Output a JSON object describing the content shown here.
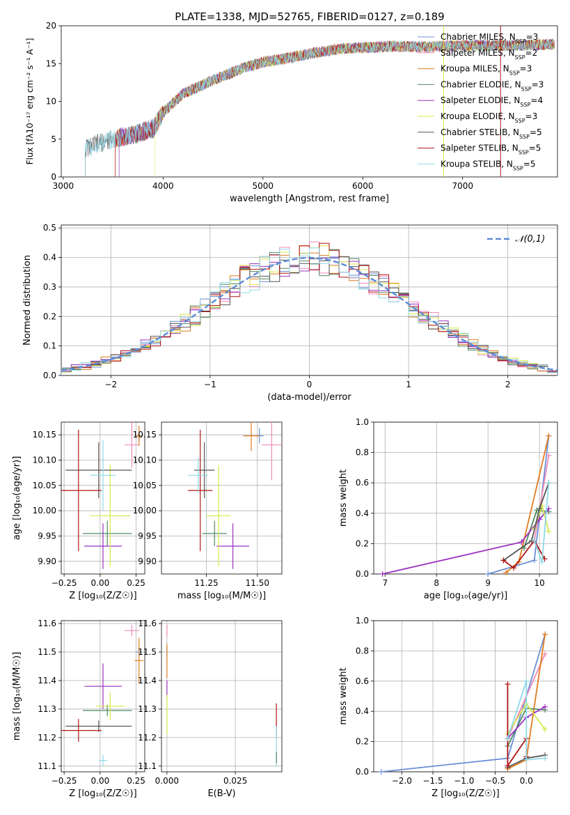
{
  "figure_title": "PLATE=1338, MJD=52765, FIBERID=0127, z=0.189",
  "series_styles": [
    {
      "name": "Chabrier MILES",
      "nssp": "3",
      "color": "#6a8fd8"
    },
    {
      "name": "Salpeter MILES",
      "nssp": "2",
      "color": "#f08ab8"
    },
    {
      "name": "Kroupa MILES",
      "nssp": "3",
      "color": "#e07b20"
    },
    {
      "name": "Chabrier ELODIE",
      "nssp": "3",
      "color": "#4f8a60"
    },
    {
      "name": "Salpeter ELODIE",
      "nssp": "4",
      "color": "#9b2fbf"
    },
    {
      "name": "Kroupa ELODIE",
      "nssp": "3",
      "color": "#d6e84a"
    },
    {
      "name": "Chabrier STELIB",
      "nssp": "5",
      "color": "#555555"
    },
    {
      "name": "Salpeter STELIB",
      "nssp": "5",
      "color": "#b01515"
    },
    {
      "name": "Kroupa STELIB",
      "nssp": "5",
      "color": "#8fd8e8"
    }
  ],
  "chart_data": [
    {
      "id": "spectrum",
      "type": "line",
      "xlabel": "wavelength [Angstrom, rest frame]",
      "ylabel": "Flux [f_λ 10^-17 erg cm^-2 s^-1 A^-1]",
      "xlim": [
        2980,
        7950
      ],
      "ylim": [
        0,
        20
      ],
      "xticks": [
        3000,
        4000,
        5000,
        6000,
        7000
      ],
      "yticks": [
        0,
        5,
        10,
        15,
        20
      ],
      "grid": false,
      "legend_position": "right",
      "legend": [
        "Chabrier MILES, N_SSP=3",
        "Salpeter MILES, N_SSP=2",
        "Kroupa MILES, N_SSP=3",
        "Chabrier ELODIE, N_SSP=3",
        "Salpeter ELODIE, N_SSP=4",
        "Kroupa ELODIE, N_SSP=3",
        "Chabrier STELIB, N_SSP=5",
        "Salpeter STELIB, N_SSP=5",
        "Kroupa STELIB, N_SSP=5"
      ],
      "data_trend": {
        "x": [
          3220,
          3300,
          3500,
          3700,
          3900,
          4000,
          4200,
          4500,
          4800,
          5000,
          5200,
          5500,
          5800,
          6000,
          6300,
          6600,
          7000,
          7300,
          7600,
          7920
        ],
        "y": [
          3.8,
          4.2,
          5.0,
          5.6,
          6.4,
          8.5,
          11.0,
          12.8,
          14.4,
          15.2,
          15.6,
          16.4,
          17.0,
          17.1,
          17.3,
          17.2,
          17.4,
          17.4,
          17.4,
          17.6
        ]
      }
    },
    {
      "id": "residuals",
      "type": "area",
      "xlabel": "(data-model)/error",
      "ylabel": "Normed distribution",
      "xlim": [
        -2.5,
        2.5
      ],
      "ylim": [
        0,
        0.51
      ],
      "xticks": [
        -2,
        -1,
        0,
        1,
        2
      ],
      "yticks": [
        0.0,
        0.1,
        0.2,
        0.3,
        0.4,
        0.5
      ],
      "grid": true,
      "legend_position": "top-right",
      "legend": [
        "𝒩(0,1)"
      ],
      "histogram_bins": 50
    },
    {
      "id": "age-vs-Z",
      "type": "scatter",
      "xlabel": "Z [log10(Z/Z☉)]",
      "ylabel": "age [log10(age/yr)]",
      "xlim": [
        -0.27,
        0.31
      ],
      "ylim": [
        9.875,
        10.175
      ],
      "xticks": [
        -0.25,
        0.0,
        0.25
      ],
      "yticks": [
        9.9,
        9.95,
        10.0,
        10.05,
        10.1,
        10.15
      ],
      "grid": true,
      "points": [
        {
          "x": 0.27,
          "y": 10.148,
          "xerr": 0.02,
          "yerr": 0.01,
          "series": 0
        },
        {
          "x": 0.22,
          "y": 10.13,
          "xerr": 0.05,
          "yerr": 0.045,
          "series": 1
        },
        {
          "x": 0.27,
          "y": 10.148,
          "xerr": 0.02,
          "yerr": 0.02,
          "series": 2
        },
        {
          "x": 0.05,
          "y": 9.955,
          "xerr": 0.17,
          "yerr": 0.025,
          "series": 3
        },
        {
          "x": 0.02,
          "y": 9.93,
          "xerr": 0.13,
          "yerr": 0.045,
          "series": 4
        },
        {
          "x": 0.07,
          "y": 9.99,
          "xerr": 0.14,
          "yerr": 0.1,
          "series": 5
        },
        {
          "x": -0.01,
          "y": 10.08,
          "xerr": 0.23,
          "yerr": 0.055,
          "series": 6
        },
        {
          "x": -0.15,
          "y": 10.04,
          "xerr": 0.16,
          "yerr": 0.12,
          "series": 7
        },
        {
          "x": 0.02,
          "y": 10.07,
          "xerr": 0.09,
          "yerr": 0.07,
          "series": 8
        }
      ]
    },
    {
      "id": "age-vs-mass",
      "type": "scatter",
      "xlabel": "mass [log10(M/M☉)]",
      "ylabel": "",
      "xlim": [
        11.03,
        11.62
      ],
      "ylim": [
        9.875,
        10.175
      ],
      "xticks": [
        11.25,
        11.5
      ],
      "yticks": [
        9.9,
        9.95,
        10.0,
        10.05,
        10.1,
        10.15
      ],
      "grid": true,
      "points": [
        {
          "x": 11.51,
          "y": 10.148,
          "xerr": 0.02,
          "yerr": 0.015,
          "series": 0
        },
        {
          "x": 11.57,
          "y": 10.13,
          "xerr": 0.05,
          "yerr": 0.07,
          "series": 1
        },
        {
          "x": 11.47,
          "y": 10.148,
          "xerr": 0.04,
          "yerr": 0.03,
          "series": 2
        },
        {
          "x": 11.29,
          "y": 9.955,
          "xerr": 0.06,
          "yerr": 0.025,
          "series": 3
        },
        {
          "x": 11.38,
          "y": 9.93,
          "xerr": 0.08,
          "yerr": 0.045,
          "series": 4
        },
        {
          "x": 11.31,
          "y": 9.99,
          "xerr": 0.06,
          "yerr": 0.1,
          "series": 5
        },
        {
          "x": 11.24,
          "y": 10.08,
          "xerr": 0.05,
          "yerr": 0.055,
          "series": 6
        },
        {
          "x": 11.22,
          "y": 10.04,
          "xerr": 0.06,
          "yerr": 0.12,
          "series": 7
        },
        {
          "x": 11.21,
          "y": 10.07,
          "xerr": 0.05,
          "yerr": 0.035,
          "series": 8
        }
      ]
    },
    {
      "id": "weight-vs-age",
      "type": "line",
      "xlabel": "age [log10(age/yr)]",
      "ylabel": "mass weight",
      "xlim": [
        6.78,
        10.35
      ],
      "ylim": [
        0,
        1.0
      ],
      "xticks": [
        7,
        8,
        9,
        10
      ],
      "yticks": [
        0.0,
        0.2,
        0.4,
        0.6,
        0.8,
        1.0
      ],
      "grid": true,
      "series": [
        {
          "series": 0,
          "points": [
            [
              9.0,
              0.0
            ],
            [
              9.9,
              0.09
            ],
            [
              10.18,
              0.91
            ]
          ]
        },
        {
          "series": 1,
          "points": [
            [
              9.9,
              0.22
            ],
            [
              10.18,
              0.78
            ]
          ]
        },
        {
          "series": 2,
          "points": [
            [
              9.35,
              0.01
            ],
            [
              9.6,
              0.08
            ],
            [
              10.18,
              0.91
            ]
          ]
        },
        {
          "series": 3,
          "points": [
            [
              9.7,
              0.17
            ],
            [
              9.95,
              0.42
            ],
            [
              10.18,
              0.41
            ]
          ]
        },
        {
          "series": 4,
          "points": [
            [
              6.95,
              0.0
            ],
            [
              9.65,
              0.21
            ],
            [
              10.0,
              0.36
            ],
            [
              10.18,
              0.43
            ]
          ]
        },
        {
          "series": 5,
          "points": [
            [
              9.9,
              0.3
            ],
            [
              10.05,
              0.45
            ],
            [
              10.18,
              0.28
            ]
          ]
        },
        {
          "series": 6,
          "points": [
            [
              9.3,
              0.09
            ],
            [
              9.85,
              0.22
            ],
            [
              10.0,
              0.43
            ],
            [
              10.18,
              0.6
            ]
          ]
        },
        {
          "series": 7,
          "points": [
            [
              9.3,
              0.09
            ],
            [
              9.5,
              0.04
            ],
            [
              9.9,
              0.22
            ],
            [
              10.1,
              0.1
            ]
          ]
        },
        {
          "series": 8,
          "points": [
            [
              9.9,
              0.22
            ],
            [
              10.05,
              0.08
            ],
            [
              10.18,
              0.6
            ]
          ]
        }
      ]
    },
    {
      "id": "mass-vs-Z",
      "type": "scatter",
      "xlabel": "Z [log10(Z/Z☉)]",
      "ylabel": "mass [log10(M/M☉)]",
      "xlim": [
        -0.27,
        0.31
      ],
      "ylim": [
        11.08,
        11.61
      ],
      "xticks": [
        -0.25,
        0.0,
        0.25
      ],
      "yticks": [
        11.1,
        11.2,
        11.3,
        11.4,
        11.5,
        11.6
      ],
      "grid": true,
      "points": [
        {
          "x": 0.27,
          "y": 11.5,
          "xerr": 0.02,
          "yerr": 0.015,
          "series": 0
        },
        {
          "x": 0.22,
          "y": 11.575,
          "xerr": 0.05,
          "yerr": 0.02,
          "series": 1
        },
        {
          "x": 0.27,
          "y": 11.47,
          "xerr": 0.03,
          "yerr": 0.08,
          "series": 2
        },
        {
          "x": 0.05,
          "y": 11.295,
          "xerr": 0.17,
          "yerr": 0.02,
          "series": 3
        },
        {
          "x": 0.02,
          "y": 11.38,
          "xerr": 0.13,
          "yerr": 0.08,
          "series": 4
        },
        {
          "x": 0.07,
          "y": 11.31,
          "xerr": 0.1,
          "yerr": 0.05,
          "series": 5
        },
        {
          "x": -0.01,
          "y": 11.24,
          "xerr": 0.23,
          "yerr": 0.02,
          "series": 6
        },
        {
          "x": -0.15,
          "y": 11.225,
          "xerr": 0.16,
          "yerr": 0.04,
          "series": 7
        },
        {
          "x": 0.02,
          "y": 11.12,
          "xerr": 0.03,
          "yerr": 0.02,
          "series": 8
        }
      ]
    },
    {
      "id": "mass-vs-ebv",
      "type": "scatter",
      "xlabel": "E(B-V)",
      "ylabel": "",
      "xlim": [
        -0.002,
        0.042
      ],
      "ylim": [
        11.08,
        11.61
      ],
      "xticks": [
        0.0,
        0.025
      ],
      "xtick_labels": [
        "0.000",
        "0.025"
      ],
      "yticks": [
        11.1,
        11.2,
        11.3,
        11.4,
        11.5,
        11.6
      ],
      "grid": true,
      "points": [
        {
          "x": 0.0,
          "y": 11.5,
          "xerr": 0,
          "yerr": 0.02,
          "series": 0
        },
        {
          "x": 0.0,
          "y": 11.575,
          "xerr": 0,
          "yerr": 0.02,
          "series": 1
        },
        {
          "x": 0.0,
          "y": 11.47,
          "xerr": 0,
          "yerr": 0.06,
          "series": 2
        },
        {
          "x": 0.0,
          "y": 11.37,
          "xerr": 0,
          "yerr": 0.03,
          "series": 4
        },
        {
          "x": 0.0,
          "y": 11.28,
          "xerr": 0,
          "yerr": 0.07,
          "series": 5
        },
        {
          "x": 0.04,
          "y": 11.26,
          "xerr": 0,
          "yerr": 0.06,
          "series": 7
        },
        {
          "x": 0.04,
          "y": 11.17,
          "xerr": 0,
          "yerr": 0.07,
          "series": 8
        },
        {
          "x": 0.04,
          "y": 11.13,
          "xerr": 0,
          "yerr": 0.02,
          "series": 3
        }
      ]
    },
    {
      "id": "weight-vs-Z",
      "type": "line",
      "xlabel": "Z [log10(Z/Z☉)]",
      "ylabel": "mass weight",
      "xlim": [
        -2.45,
        0.5
      ],
      "ylim": [
        0,
        1.0
      ],
      "xticks": [
        -2.0,
        -1.5,
        -1.0,
        -0.5,
        0.0
      ],
      "yticks": [
        0.0,
        0.2,
        0.4,
        0.6,
        0.8,
        1.0
      ],
      "grid": true,
      "series": [
        {
          "series": 0,
          "points": [
            [
              -2.33,
              0.0
            ],
            [
              -0.3,
              0.09
            ],
            [
              0.3,
              0.91
            ]
          ]
        },
        {
          "series": 1,
          "points": [
            [
              -0.3,
              0.22
            ],
            [
              0.3,
              0.78
            ]
          ]
        },
        {
          "series": 2,
          "points": [
            [
              -0.3,
              0.02
            ],
            [
              0.0,
              0.08
            ],
            [
              0.3,
              0.91
            ]
          ]
        },
        {
          "series": 3,
          "points": [
            [
              -0.3,
              0.17
            ],
            [
              0.0,
              0.42
            ],
            [
              0.3,
              0.41
            ]
          ]
        },
        {
          "series": 4,
          "points": [
            [
              -0.3,
              0.22
            ],
            [
              0.0,
              0.36
            ],
            [
              0.3,
              0.43
            ]
          ]
        },
        {
          "series": 5,
          "points": [
            [
              -0.3,
              0.25
            ],
            [
              0.0,
              0.45
            ],
            [
              0.3,
              0.28
            ]
          ]
        },
        {
          "series": 6,
          "points": [
            [
              -0.3,
              0.03
            ],
            [
              0.0,
              0.09
            ],
            [
              0.3,
              0.11
            ]
          ]
        },
        {
          "series": 7,
          "points": [
            [
              -0.3,
              0.58
            ],
            [
              -0.3,
              0.04
            ],
            [
              0.0,
              0.22
            ],
            [
              0.0,
              0.1
            ]
          ]
        },
        {
          "series": 8,
          "points": [
            [
              -0.3,
              0.22
            ],
            [
              0.0,
              0.6
            ],
            [
              0.0,
              0.08
            ],
            [
              0.3,
              0.09
            ]
          ]
        }
      ]
    }
  ]
}
